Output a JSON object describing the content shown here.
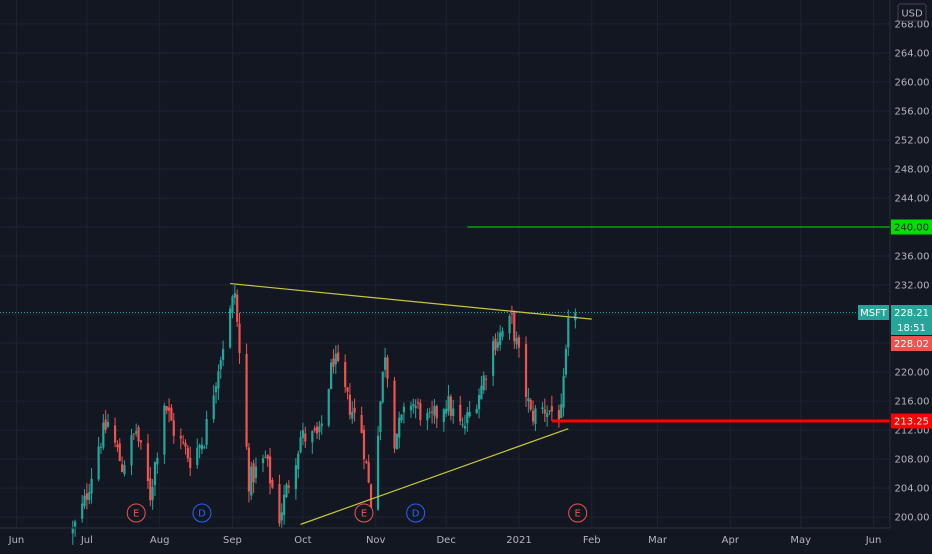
{
  "currency": "USD",
  "colors": {
    "background": "#131722",
    "grid": "#1f2330",
    "up": "#26a69a",
    "down": "#ef5350",
    "trendline": "#c5c83a",
    "resistance": "#00e000",
    "support": "#ff0000",
    "axis_text": "#b2b5be",
    "price_line": "#26a69a"
  },
  "markers": [
    {
      "label": "E",
      "kind": "earnings",
      "date": "2020-07-22",
      "color": "#ef5350"
    },
    {
      "label": "D",
      "kind": "dividend",
      "date": "2020-08-19",
      "color": "#2962ff"
    },
    {
      "label": "E",
      "kind": "earnings",
      "date": "2020-10-27",
      "color": "#ef5350"
    },
    {
      "label": "D",
      "kind": "dividend",
      "date": "2020-11-18",
      "color": "#2962ff"
    },
    {
      "label": "E",
      "kind": "earnings",
      "date": "2021-01-26",
      "color": "#ef5350"
    }
  ],
  "price_badges": {
    "symbol": "MSFT",
    "last": "228.21",
    "countdown": "18:51",
    "prev": "228.02",
    "resistance": "240.00",
    "support": "213.25"
  },
  "chart_data": {
    "type": "candlestick",
    "symbol": "MSFT",
    "currency": "USD",
    "x_ticks": [
      "Jun",
      "Jul",
      "Aug",
      "Sep",
      "Oct",
      "Nov",
      "Dec",
      "2021",
      "Feb",
      "Mar",
      "Apr",
      "May",
      "Jun"
    ],
    "x_tick_dates": [
      "2020-06-01",
      "2020-07-01",
      "2020-08-01",
      "2020-09-01",
      "2020-10-01",
      "2020-11-01",
      "2020-12-01",
      "2021-01-01",
      "2021-02-01",
      "2021-03-01",
      "2021-04-01",
      "2021-05-01",
      "2021-06-01"
    ],
    "y_ticks": [
      "200.00",
      "204.00",
      "208.00",
      "212.00",
      "216.00",
      "220.00",
      "224.00",
      "228.00",
      "232.00",
      "236.00",
      "240.00",
      "244.00",
      "248.00",
      "252.00",
      "256.00",
      "260.00",
      "264.00",
      "268.00"
    ],
    "y_range": [
      198.5,
      271.3
    ],
    "x_range": [
      "2020-05-25",
      "2021-06-08"
    ],
    "grid": true,
    "last_price": 228.21,
    "prev_close": 228.02,
    "price_path": [
      [
        "2020-06-25",
        198
      ],
      [
        "2020-06-30",
        202
      ],
      [
        "2020-07-06",
        210
      ],
      [
        "2020-07-10",
        213
      ],
      [
        "2020-07-16",
        207
      ],
      [
        "2020-07-22",
        212
      ],
      [
        "2020-07-28",
        203
      ],
      [
        "2020-08-03",
        216
      ],
      [
        "2020-08-07",
        212
      ],
      [
        "2020-08-14",
        208
      ],
      [
        "2020-08-20",
        211
      ],
      [
        "2020-08-26",
        221
      ],
      [
        "2020-09-02",
        231
      ],
      [
        "2020-09-08",
        205
      ],
      [
        "2020-09-15",
        208
      ],
      [
        "2020-09-21",
        200
      ],
      [
        "2020-09-30",
        211
      ],
      [
        "2020-10-08",
        211
      ],
      [
        "2020-10-14",
        222
      ],
      [
        "2020-10-20",
        216
      ],
      [
        "2020-10-26",
        212
      ],
      [
        "2020-10-30",
        202
      ],
      [
        "2020-11-05",
        223
      ],
      [
        "2020-11-09",
        211
      ],
      [
        "2020-11-16",
        216
      ],
      [
        "2020-11-24",
        213
      ],
      [
        "2020-12-01",
        216
      ],
      [
        "2020-12-08",
        212
      ],
      [
        "2020-12-16",
        218
      ],
      [
        "2020-12-21",
        224
      ],
      [
        "2020-12-29",
        227
      ],
      [
        "2021-01-06",
        214
      ],
      [
        "2021-01-12",
        215
      ],
      [
        "2021-01-19",
        214
      ],
      [
        "2021-01-22",
        226
      ],
      [
        "2021-01-25",
        228.21
      ]
    ],
    "annotations": [
      {
        "type": "trendline",
        "name": "upper-trendline",
        "from": [
          "2020-08-31",
          232.2
        ],
        "to": [
          "2021-02-01",
          227.3
        ]
      },
      {
        "type": "trendline",
        "name": "lower-trendline",
        "from": [
          "2020-09-30",
          199.0
        ],
        "to": [
          "2021-01-22",
          212.2
        ]
      },
      {
        "type": "hline",
        "name": "resistance-line",
        "price": 240.0,
        "from": "2020-12-10"
      },
      {
        "type": "hline",
        "name": "support-line",
        "price": 213.25,
        "from": "2021-01-15"
      }
    ]
  }
}
